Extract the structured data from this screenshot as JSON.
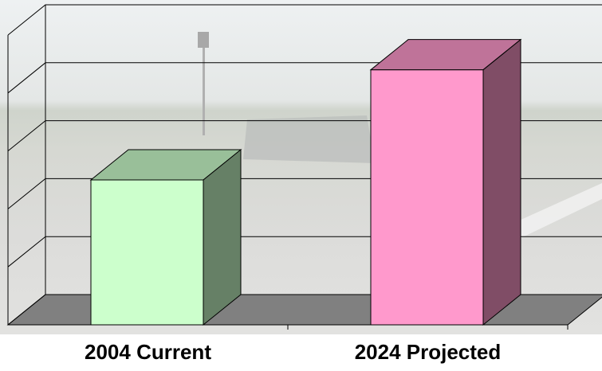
{
  "chart_data": {
    "type": "bar3d",
    "categories": [
      "2004 Current",
      "2024 Projected"
    ],
    "values": [
      2.5,
      4.4
    ],
    "colors": [
      "#ccffcc",
      "#ff99cc"
    ],
    "ylim": [
      0,
      5
    ],
    "yticks": [
      0,
      1,
      2,
      3,
      4,
      5
    ],
    "grid": true
  }
}
